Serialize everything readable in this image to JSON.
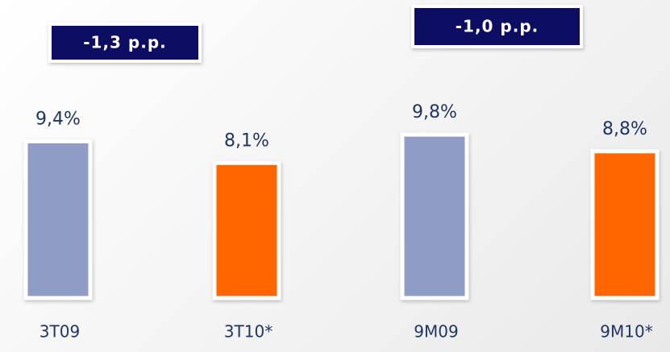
{
  "chart_data": {
    "type": "bar",
    "categories": [
      "3T09",
      "3T10*",
      "9M09",
      "9M10*"
    ],
    "values": [
      9.4,
      8.1,
      9.8,
      8.8
    ],
    "value_labels": [
      "9,4%",
      "8,1%",
      "9,8%",
      "8,8%"
    ],
    "colors": [
      "#8f9dc6",
      "#ff6600",
      "#8f9dc6",
      "#ff6600"
    ],
    "annotations": [
      "-1,3 p.p.",
      "-1,0 p.p."
    ]
  }
}
